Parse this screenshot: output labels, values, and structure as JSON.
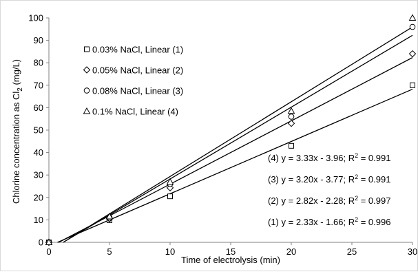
{
  "chart_data": {
    "type": "scatter",
    "xlabel": "Time of electrolysis (min)",
    "ylabel_prefix": "Chlorine concentration as Cl",
    "ylabel_sub": "2",
    "ylabel_suffix": " (mg/L)",
    "xlim": [
      0,
      30
    ],
    "ylim": [
      0,
      100
    ],
    "xticks": [
      0,
      5,
      10,
      15,
      20,
      25,
      30
    ],
    "yticks": [
      0,
      10,
      20,
      30,
      40,
      50,
      60,
      70,
      80,
      90,
      100
    ],
    "grid": false,
    "legend_position": "top-left",
    "series": [
      {
        "name": "0.03% NaCl, Linear (1)",
        "marker": "square",
        "x": [
          0,
          5,
          10,
          20,
          30
        ],
        "y": [
          0,
          9.8,
          20.5,
          43,
          70
        ],
        "fit": {
          "slope": 2.33,
          "intercept": -1.66
        },
        "equation": "(1) y = 2.33x - 1.66; R",
        "r2_sup": "2",
        "r2_value": " = 0.996"
      },
      {
        "name": "0.05% NaCl, Linear (2)",
        "marker": "diamond",
        "x": [
          0,
          5,
          10,
          20,
          30
        ],
        "y": [
          0,
          10.5,
          24.3,
          53,
          84
        ],
        "fit": {
          "slope": 2.82,
          "intercept": -2.28
        },
        "equation": "(2) y = 2.82x - 2.28; R",
        "r2_sup": "2",
        "r2_value": " = 0.997"
      },
      {
        "name": "0.08% NaCl, Linear (3)",
        "marker": "circle",
        "x": [
          0,
          5,
          10,
          20,
          30
        ],
        "y": [
          0,
          11,
          26,
          56,
          96
        ],
        "fit": {
          "slope": 3.2,
          "intercept": -3.77
        },
        "equation": "(3) y = 3.20x - 3.77; R",
        "r2_sup": "2",
        "r2_value": " = 0.991"
      },
      {
        "name": "0.1% NaCl, Linear (4)",
        "marker": "triangle",
        "x": [
          0,
          5,
          10,
          20,
          30
        ],
        "y": [
          0,
          11.5,
          27,
          58.5,
          100
        ],
        "fit": {
          "slope": 3.33,
          "intercept": -3.96
        },
        "equation": "(4) y = 3.33x - 3.96; R",
        "r2_sup": "2",
        "r2_value": " = 0.991"
      }
    ]
  }
}
